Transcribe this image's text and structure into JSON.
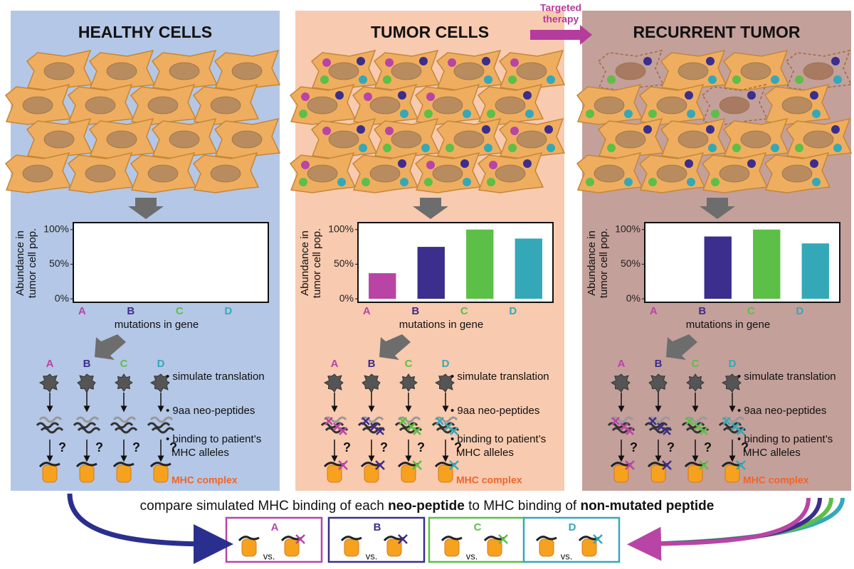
{
  "therapy_label": [
    "Targeted",
    "therapy"
  ],
  "panels": [
    {
      "title": "HEALTHY CELLS",
      "chart": {
        "type": "bar",
        "ylabel": [
          "Abundance in",
          "tumor cell pop."
        ],
        "xlabel": "mutations in gene",
        "categories": [
          "A",
          "B",
          "C",
          "D"
        ],
        "colors": [
          "#b845a6",
          "#3b2e8c",
          "#5cbf47",
          "#35a8b8"
        ],
        "values": [
          0,
          0,
          0,
          0
        ],
        "ylim": [
          -5,
          110
        ],
        "yticks": [
          {
            "value": 0,
            "label": "0%"
          },
          {
            "value": 50,
            "label": "50%"
          },
          {
            "value": 100,
            "label": "100%"
          }
        ]
      },
      "proteins": [
        "A",
        "B",
        "C",
        "D"
      ],
      "questions": [
        "?",
        "?",
        "?",
        "?"
      ],
      "steps": [
        "• simulate translation",
        "• 9aa neo-peptides",
        "• binding to patient’s",
        "MHC alleles"
      ],
      "complex_label": "MHC complex"
    },
    {
      "title": "TUMOR CELLS",
      "chart": {
        "type": "bar",
        "ylabel": [
          "Abundance in",
          "tumor cell pop."
        ],
        "xlabel": "mutations in gene",
        "categories": [
          "A",
          "B",
          "C",
          "D"
        ],
        "colors": [
          "#b845a6",
          "#3b2e8c",
          "#5cbf47",
          "#35a8b8"
        ],
        "values": [
          37,
          75,
          100,
          87
        ],
        "ylim": [
          -5,
          110
        ],
        "yticks": [
          {
            "value": 0,
            "label": "0%"
          },
          {
            "value": 50,
            "label": "50%"
          },
          {
            "value": 100,
            "label": "100%"
          }
        ]
      },
      "proteins": [
        "A",
        "B",
        "C",
        "D"
      ],
      "questions": [
        "?",
        "?",
        "?",
        "?"
      ],
      "steps": [
        "• simulate translation",
        "• 9aa neo-peptides",
        "• binding to patient’s",
        "MHC alleles"
      ],
      "complex_label": "MHC complex"
    },
    {
      "title": "RECURRENT TUMOR",
      "chart": {
        "type": "bar",
        "ylabel": [
          "Abundance in",
          "tumor cell pop."
        ],
        "xlabel": "mutations in gene",
        "categories": [
          "A",
          "B",
          "C",
          "D"
        ],
        "colors": [
          "#b845a6",
          "#3b2e8c",
          "#5cbf47",
          "#35a8b8"
        ],
        "values": [
          0,
          90,
          100,
          80
        ],
        "ylim": [
          -5,
          110
        ],
        "yticks": [
          {
            "value": 0,
            "label": "0%"
          },
          {
            "value": 50,
            "label": "50%"
          },
          {
            "value": 100,
            "label": "100%"
          }
        ]
      },
      "proteins": [
        "A",
        "B",
        "C",
        "D"
      ],
      "questions": [
        "?",
        "?",
        "?",
        "?"
      ],
      "steps": [
        "• simulate translation",
        "• 9aa neo-peptides",
        "• binding to patient’s",
        "MHC alleles"
      ],
      "complex_label": "MHC complex"
    }
  ],
  "comparison": {
    "sentence": [
      "compare simulated MHC binding of each ",
      "neo-peptide",
      " to MHC binding of ",
      "non-mutated peptide"
    ],
    "boxes": [
      {
        "label": "A",
        "vs": "vs."
      },
      {
        "label": "B",
        "vs": "vs."
      },
      {
        "label": "C",
        "vs": "vs."
      },
      {
        "label": "D",
        "vs": "vs."
      }
    ]
  }
}
